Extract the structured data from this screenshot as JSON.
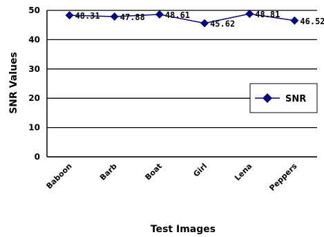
{
  "chart_data": {
    "type": "line",
    "categories": [
      "Baboon",
      "Barb",
      "Boat",
      "Girl",
      "Lena",
      "Peppers"
    ],
    "series": [
      {
        "name": "SNR",
        "values": [
          48.31,
          47.88,
          48.61,
          45.62,
          48.81,
          46.52
        ],
        "color": "#000080"
      }
    ],
    "data_labels": [
      "48.31",
      "47.88",
      "48.61",
      "45.62",
      "48.81",
      "46.52"
    ],
    "xlabel": "Test Images",
    "ylabel": "SNR Values",
    "ylim": [
      0,
      50
    ],
    "yticks": [
      0,
      10,
      20,
      30,
      40,
      50
    ],
    "grid": "horizontal",
    "legend": "right",
    "marker": "diamond"
  }
}
